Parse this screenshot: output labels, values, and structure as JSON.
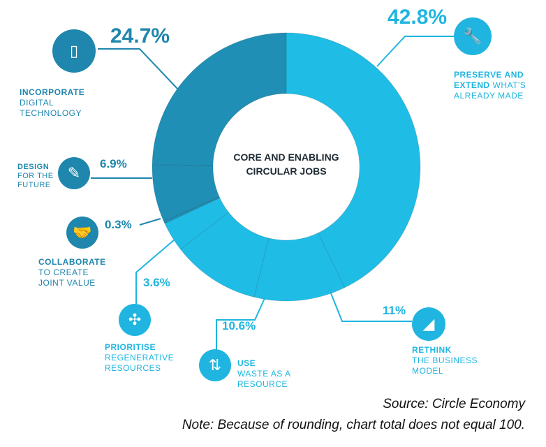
{
  "chart_data": {
    "type": "pie",
    "title": "CORE AND ENABLING CIRCULAR JOBS",
    "categories": [
      "Preserve and extend what's already made",
      "Rethink the business model",
      "Use waste as a resource",
      "Prioritise regenerative resources",
      "Collaborate to create joint value",
      "Design for the future",
      "Incorporate digital technology"
    ],
    "values": [
      42.8,
      11,
      10.6,
      3.6,
      0.3,
      6.9,
      24.7
    ],
    "value_labels": [
      "42.8%",
      "11%",
      "10.6%",
      "3.6%",
      "0.3%",
      "6.9%",
      "24.7%"
    ],
    "colors": [
      "#1fbde6",
      "#1fbde6",
      "#1fbde6",
      "#1fbde6",
      "#1f8fb5",
      "#1f8fb5",
      "#1f8fb5"
    ],
    "donut": true
  },
  "labels": {
    "preserve": {
      "l1": "PRESERVE AND",
      "l2a": "EXTEND",
      "l2b": " WHAT'S",
      "l3": "ALREADY MADE"
    },
    "rethink": {
      "l1": "RETHINK",
      "l2": "THE BUSINESS",
      "l3": "MODEL"
    },
    "use": {
      "l1": "USE",
      "l2": "WASTE AS A",
      "l3": "RESOURCE"
    },
    "prioritise": {
      "l1": "PRIORITISE",
      "l2": "REGENERATIVE",
      "l3": "RESOURCES"
    },
    "collaborate": {
      "l1": "COLLABORATE",
      "l2": "TO CREATE",
      "l3": "JOINT VALUE"
    },
    "design": {
      "l1": "DESIGN",
      "l2": "FOR THE",
      "l3": "FUTURE"
    },
    "incorporate": {
      "l1": "INCORPORATE",
      "l2": "DIGITAL",
      "l3": "TECHNOLOGY"
    }
  },
  "center": {
    "l1": "CORE AND ENABLING",
    "l2": "CIRCULAR JOBS"
  },
  "source": "Source: Circle Economy",
  "note": "Note: Because of rounding, chart total does not equal 100."
}
